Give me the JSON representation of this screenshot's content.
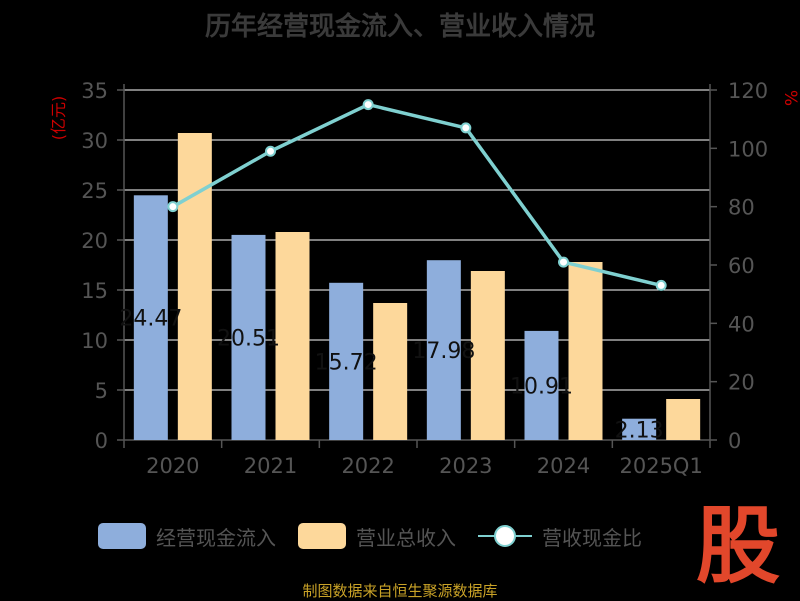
{
  "title": "历年经营现金流入、营业收入情况",
  "colors": {
    "cash_inflow": "#8eaedc",
    "revenue": "#fdd89b",
    "ratio_line": "#7fd0d0",
    "axis_text": "#555555",
    "unit_text": "#cc0000",
    "grid": "#ffffff",
    "source": "#c9a227",
    "logo": "#e2472b"
  },
  "legend": {
    "cash_inflow": "经营现金流入",
    "revenue": "营业总收入",
    "ratio": "营收现金比"
  },
  "source": "制图数据来自恒生聚源数据库",
  "logo_text": "股",
  "chart_data": {
    "type": "bar",
    "title": "历年经营现金流入、营业收入情况",
    "categories": [
      "2020",
      "2021",
      "2022",
      "2023",
      "2024",
      "2025Q1"
    ],
    "ylabel": "(亿元)",
    "ylabel_right": "%",
    "ylim": [
      0,
      35
    ],
    "yticks": [
      0,
      5,
      10,
      15,
      20,
      25,
      30,
      35
    ],
    "ylim_right": [
      0,
      120
    ],
    "yticks_right": [
      0,
      20,
      40,
      60,
      80,
      100,
      120
    ],
    "grid": true,
    "legend_position": "bottom",
    "series": [
      {
        "name": "经营现金流入",
        "type": "bar",
        "axis": "left",
        "values": [
          24.47,
          20.51,
          15.72,
          17.98,
          10.91,
          2.13
        ],
        "labels": [
          "24.47",
          "20.51",
          "15.72",
          "17.98",
          "10.91",
          "2.13"
        ]
      },
      {
        "name": "营业总收入",
        "type": "bar",
        "axis": "left",
        "values": [
          30.7,
          20.8,
          13.7,
          16.9,
          17.8,
          4.1
        ]
      },
      {
        "name": "营收现金比",
        "type": "line",
        "axis": "right",
        "values": [
          80,
          99,
          115,
          107,
          61,
          53
        ]
      }
    ]
  }
}
